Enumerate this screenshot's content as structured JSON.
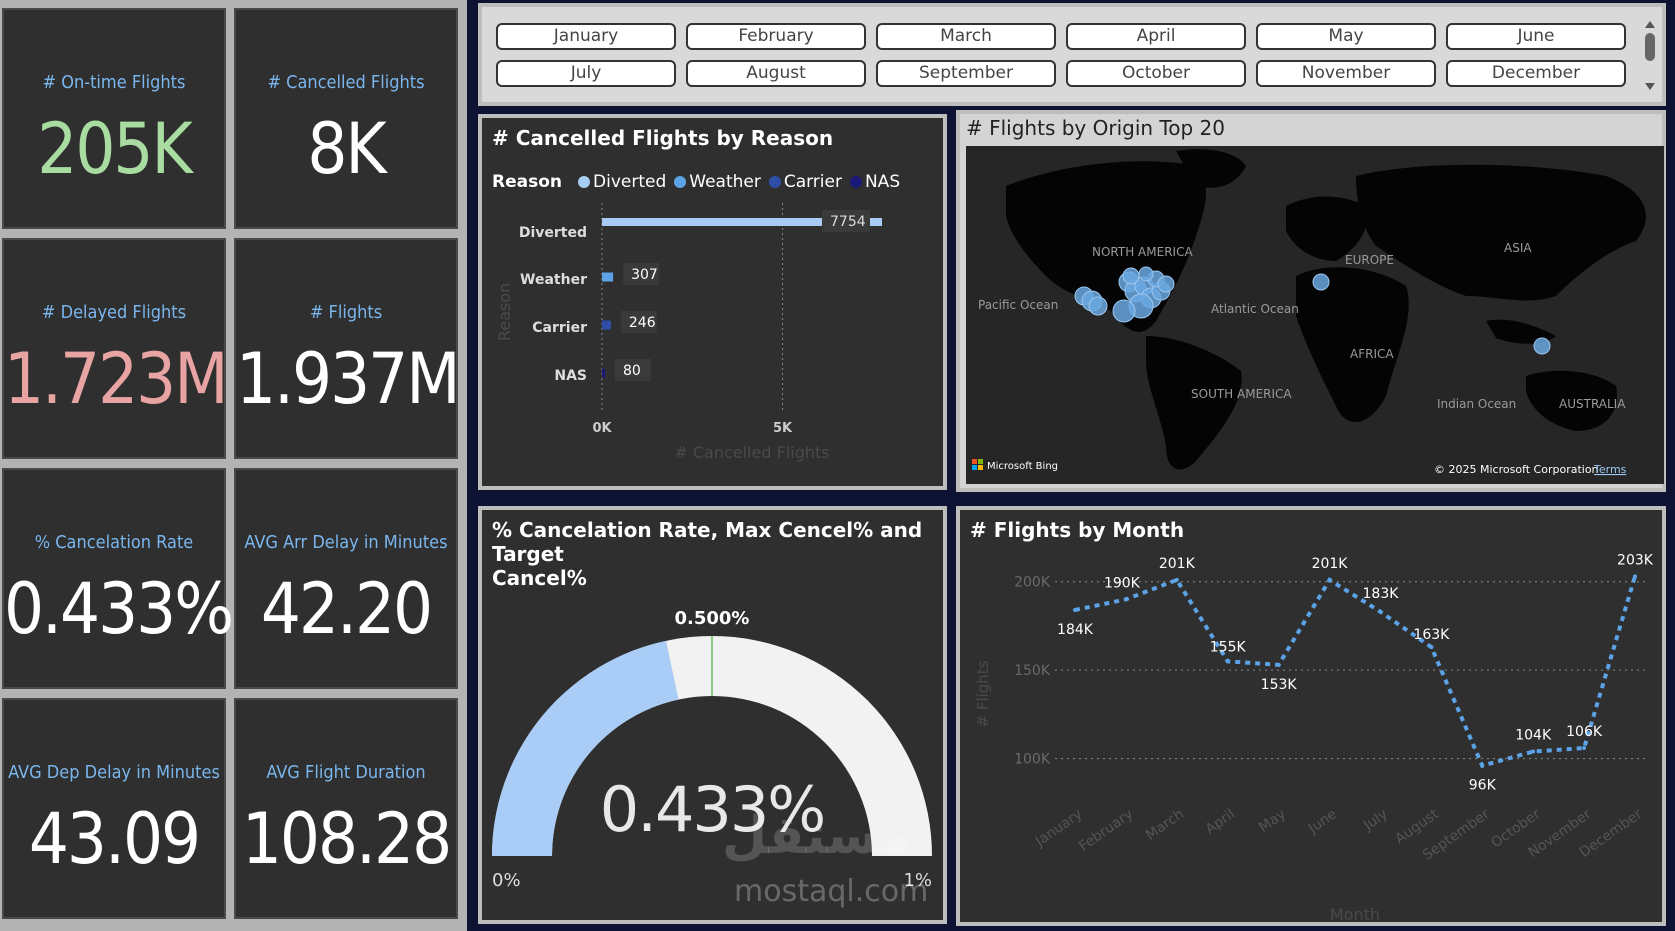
{
  "kpis": [
    {
      "label": "# On-time Flights",
      "value": "205K",
      "color": "#a8dca0"
    },
    {
      "label": "# Cancelled Flights",
      "value": "8K",
      "color": "#ffffff"
    },
    {
      "label": "# Delayed Flights",
      "value": "1.723M",
      "color": "#e8a3a3"
    },
    {
      "label": "# Flights",
      "value": "1.937M",
      "color": "#ffffff"
    },
    {
      "label": "% Cancelation Rate",
      "value": "0.433%",
      "color": "#ffffff"
    },
    {
      "label": "AVG Arr Delay in Minutes",
      "value": "42.20",
      "color": "#ffffff"
    },
    {
      "label": "AVG Dep Delay in Minutes",
      "value": "43.09",
      "color": "#ffffff"
    },
    {
      "label": "AVG Flight Duration",
      "value": "108.28",
      "color": "#ffffff"
    }
  ],
  "month_slicer": [
    "January",
    "February",
    "March",
    "April",
    "May",
    "June",
    "July",
    "August",
    "September",
    "October",
    "November",
    "December"
  ],
  "cancel_by_reason": {
    "title": "# Cancelled Flights by Reason",
    "legend_title": "Reason",
    "xlabel": "# Cancelled Flights",
    "ylabel": "Reason",
    "x_ticks": [
      "0K",
      "5K"
    ]
  },
  "map": {
    "title": "# Flights by Origin Top 20",
    "labels": [
      "NORTH AMERICA",
      "EUROPE",
      "ASIA",
      "Pacific Ocean",
      "Atlantic Ocean",
      "AFRICA",
      "SOUTH AMERICA",
      "Indian Ocean",
      "AUSTRALIA"
    ],
    "bing": "Microsoft Bing",
    "copyright": "© 2025 Microsoft Corporation",
    "terms": "Terms"
  },
  "gauge": {
    "title_line1": "% Cancelation Rate, Max Cencel% and Target",
    "title_line2": "Cancel%",
    "value_label": "0.433%",
    "target_label": "0.500%",
    "min_label": "0%",
    "max_label": "1%",
    "value": 0.433,
    "target": 0.5,
    "min": 0,
    "max": 1
  },
  "watermark": {
    "arabic": "مستقل",
    "latin": "mostaql.com"
  },
  "chart_data": [
    {
      "type": "bar",
      "orientation": "horizontal",
      "title": "# Cancelled Flights by Reason",
      "categories": [
        "Diverted",
        "Weather",
        "Carrier",
        "NAS"
      ],
      "values": [
        7754,
        307,
        246,
        80
      ],
      "colors": [
        "#a8cdf5",
        "#5ba3e6",
        "#2e4ea8",
        "#1a1a7a"
      ],
      "xlabel": "# Cancelled Flights",
      "ylabel": "Reason",
      "xlim": [
        0,
        7754
      ]
    },
    {
      "type": "line",
      "title": "# Flights by Month",
      "categories": [
        "January",
        "February",
        "March",
        "April",
        "May",
        "June",
        "July",
        "August",
        "September",
        "October",
        "November",
        "December"
      ],
      "values": [
        184000,
        190000,
        201000,
        155000,
        153000,
        201000,
        183000,
        163000,
        96000,
        104000,
        106000,
        203000
      ],
      "data_labels": [
        "184K",
        "190K",
        "201K",
        "155K",
        "153K",
        "201K",
        "183K",
        "163K",
        "96K",
        "104K",
        "106K",
        "203K"
      ],
      "y_ticks": [
        "100K",
        "150K",
        "200K"
      ],
      "ylim": [
        80000,
        210000
      ],
      "xlabel": "Month",
      "ylabel": "# Flights",
      "line_color": "#5ba3e6"
    }
  ]
}
